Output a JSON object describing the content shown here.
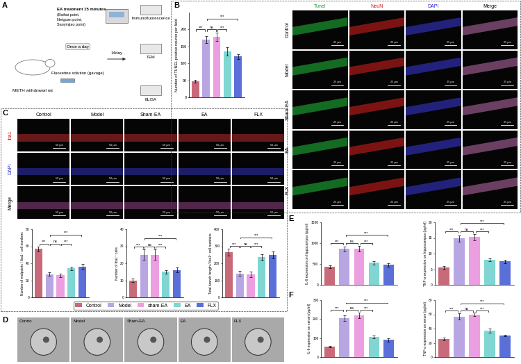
{
  "chart_data": [
    {
      "type": "bar",
      "ylabel": "Number of TUNEL positive neuron per field",
      "categories": [
        "Control",
        "Model",
        "sham-EA",
        "EA",
        "FLX"
      ],
      "colors": [
        "#c86a7a",
        "#b8a6e3",
        "#ec9fe0",
        "#7fd6d2",
        "#5a6fd8"
      ],
      "values": [
        48,
        170,
        178,
        135,
        120
      ],
      "errors": [
        4,
        10,
        12,
        12,
        8
      ],
      "ylim": [
        0,
        250
      ],
      "yticks": [
        0,
        50,
        100,
        150,
        200
      ],
      "tick_labels": "y",
      "annotations": [
        {
          "from": 0,
          "to": 1,
          "text": "***"
        },
        {
          "from": 1,
          "to": 2,
          "text": "ns"
        },
        {
          "from": 2,
          "to": 3,
          "text": "***"
        },
        {
          "from": 1,
          "to": 4,
          "text": "***"
        }
      ]
    },
    {
      "type": "bar",
      "ylabel": "Number of endpoints / Iba1⁺ cell numbers",
      "categories": [
        "Control",
        "Model",
        "sham-EA",
        "EA",
        "FLX"
      ],
      "colors": [
        "#c86a7a",
        "#b8a6e3",
        "#ec9fe0",
        "#7fd6d2",
        "#5a6fd8"
      ],
      "values": [
        57,
        27,
        26,
        34,
        36
      ],
      "errors": [
        3,
        2,
        2,
        2,
        3
      ],
      "ylim": [
        0,
        80
      ],
      "yticks": [
        0,
        20,
        40,
        60,
        80
      ],
      "tick_labels": "y",
      "annotations": [
        {
          "from": 0,
          "to": 1,
          "text": "***"
        },
        {
          "from": 1,
          "to": 2,
          "text": "ns"
        },
        {
          "from": 2,
          "to": 3,
          "text": "***"
        },
        {
          "from": 1,
          "to": 4,
          "text": "***"
        }
      ]
    },
    {
      "type": "bar",
      "ylabel": "Number of Iba1⁺ cells",
      "categories": [
        "Control",
        "Model",
        "sham-EA",
        "EA",
        "FLX"
      ],
      "colors": [
        "#c86a7a",
        "#b8a6e3",
        "#ec9fe0",
        "#7fd6d2",
        "#5a6fd8"
      ],
      "values": [
        10,
        25,
        25,
        15,
        16
      ],
      "errors": [
        1,
        3,
        3,
        1,
        1.5
      ],
      "ylim": [
        0,
        40
      ],
      "yticks": [
        0,
        10,
        20,
        30,
        40
      ],
      "tick_labels": "y",
      "annotations": [
        {
          "from": 0,
          "to": 1,
          "text": "***"
        },
        {
          "from": 1,
          "to": 2,
          "text": "ns"
        },
        {
          "from": 2,
          "to": 3,
          "text": "***"
        },
        {
          "from": 1,
          "to": 4,
          "text": "***"
        }
      ]
    },
    {
      "type": "bar",
      "ylabel": "Total branch length / Iba1⁺ cell numbers",
      "categories": [
        "Control",
        "Model",
        "sham-EA",
        "EA",
        "FLX"
      ],
      "colors": [
        "#c86a7a",
        "#b8a6e3",
        "#ec9fe0",
        "#7fd6d2",
        "#5a6fd8"
      ],
      "values": [
        265,
        140,
        135,
        235,
        250
      ],
      "errors": [
        20,
        15,
        15,
        20,
        20
      ],
      "ylim": [
        0,
        400
      ],
      "yticks": [
        0,
        100,
        200,
        300,
        400
      ],
      "tick_labels": "y",
      "annotations": [
        {
          "from": 0,
          "to": 1,
          "text": "***"
        },
        {
          "from": 1,
          "to": 2,
          "text": "ns"
        },
        {
          "from": 2,
          "to": 3,
          "text": "***"
        },
        {
          "from": 1,
          "to": 4,
          "text": "***"
        }
      ]
    },
    {
      "type": "bar",
      "ylabel": "IL-6 expression on hippocampus (pg/ml)",
      "categories": [
        "Control",
        "Model",
        "sham-EA",
        "EA",
        "FLX"
      ],
      "colors": [
        "#c86a7a",
        "#b8a6e3",
        "#ec9fe0",
        "#7fd6d2",
        "#5a6fd8"
      ],
      "values": [
        430,
        860,
        870,
        530,
        480
      ],
      "errors": [
        30,
        60,
        70,
        40,
        40
      ],
      "ylim": [
        0,
        1500
      ],
      "yticks": [
        0,
        500,
        1000,
        1500
      ],
      "tick_labels": "y",
      "annotations": [
        {
          "from": 0,
          "to": 1,
          "text": "***"
        },
        {
          "from": 1,
          "to": 2,
          "text": "ns"
        },
        {
          "from": 2,
          "to": 3,
          "text": "***"
        },
        {
          "from": 1,
          "to": 4,
          "text": "***"
        }
      ]
    },
    {
      "type": "bar",
      "ylabel": "TNF-α expression on hippocampus (pg/ml)",
      "categories": [
        "Control",
        "Model",
        "sham-EA",
        "EA",
        "FLX"
      ],
      "colors": [
        "#c86a7a",
        "#b8a6e3",
        "#ec9fe0",
        "#7fd6d2",
        "#5a6fd8"
      ],
      "values": [
        5.5,
        14.8,
        15.3,
        8,
        7.5
      ],
      "errors": [
        0.5,
        1,
        1,
        0.5,
        0.5
      ],
      "ylim": [
        0,
        20
      ],
      "yticks": [
        0,
        5,
        10,
        15,
        20
      ],
      "tick_labels": "y",
      "annotations": [
        {
          "from": 0,
          "to": 1,
          "text": "***"
        },
        {
          "from": 1,
          "to": 2,
          "text": "ns"
        },
        {
          "from": 2,
          "to": 3,
          "text": "***"
        },
        {
          "from": 1,
          "to": 4,
          "text": "***"
        }
      ]
    },
    {
      "type": "bar",
      "ylabel": "IL-6 expression on serum (pg/ml)",
      "categories": [
        "Control",
        "Model",
        "sham-EA",
        "EA",
        "FLX"
      ],
      "colors": [
        "#c86a7a",
        "#b8a6e3",
        "#ec9fe0",
        "#7fd6d2",
        "#5a6fd8"
      ],
      "values": [
        55,
        205,
        220,
        105,
        90
      ],
      "errors": [
        5,
        15,
        15,
        8,
        8
      ],
      "ylim": [
        0,
        300
      ],
      "yticks": [
        0,
        100,
        200,
        300
      ],
      "tick_labels": "y",
      "annotations": [
        {
          "from": 0,
          "to": 1,
          "text": "***"
        },
        {
          "from": 1,
          "to": 2,
          "text": "ns"
        },
        {
          "from": 2,
          "to": 3,
          "text": "***"
        },
        {
          "from": 1,
          "to": 4,
          "text": "***"
        }
      ]
    },
    {
      "type": "bar",
      "ylabel": "TNF-α expression on serum (pg/ml)",
      "categories": [
        "Control",
        "Model",
        "sham-EA",
        "EA",
        "FLX"
      ],
      "colors": [
        "#c86a7a",
        "#b8a6e3",
        "#ec9fe0",
        "#7fd6d2",
        "#5a6fd8"
      ],
      "values": [
        25,
        57,
        60,
        37,
        30
      ],
      "errors": [
        2,
        4,
        2,
        3,
        1
      ],
      "ylim": [
        0,
        80
      ],
      "yticks": [
        0,
        20,
        40,
        60,
        80
      ],
      "tick_labels": "y",
      "annotations": [
        {
          "from": 0,
          "to": 1,
          "text": "***"
        },
        {
          "from": 1,
          "to": 2,
          "text": "ns"
        },
        {
          "from": 2,
          "to": 3,
          "text": "***"
        },
        {
          "from": 1,
          "to": 4,
          "text": "***"
        }
      ]
    }
  ],
  "figure": {
    "panels": [
      "A",
      "B",
      "C",
      "D",
      "E",
      "F"
    ],
    "schematic": {
      "rat": "METH withdrawal rat",
      "treatment": "EA treatment 15 minutes",
      "points": [
        "(Baihui point,",
        "Neiguan point,",
        "Sanyinjiao point)"
      ],
      "frequency": "Once a day",
      "drug": "Fluoxetine solution (gavage)",
      "duration": "14day",
      "assays": [
        "Immunofluorescence",
        "TEM",
        "ELISA"
      ]
    },
    "tunel_images": {
      "columns": [
        "Tunel",
        "NeuN",
        "DAPI",
        "Merge"
      ],
      "rows": [
        "Control",
        "Model",
        "Sham-EA",
        "EA",
        "FLX"
      ],
      "scale_bar": "25 μm"
    },
    "iba1_images": {
      "columns": [
        "Control",
        "Model",
        "Sham-EA",
        "EA",
        "FLX"
      ],
      "rows": [
        "Iba1",
        "DAPI",
        "Merge"
      ],
      "scale_bar": "50 μm"
    },
    "tem_images": {
      "labels": [
        "Contro",
        "Model",
        "Sham-EA",
        "EA",
        "FLX"
      ]
    }
  }
}
